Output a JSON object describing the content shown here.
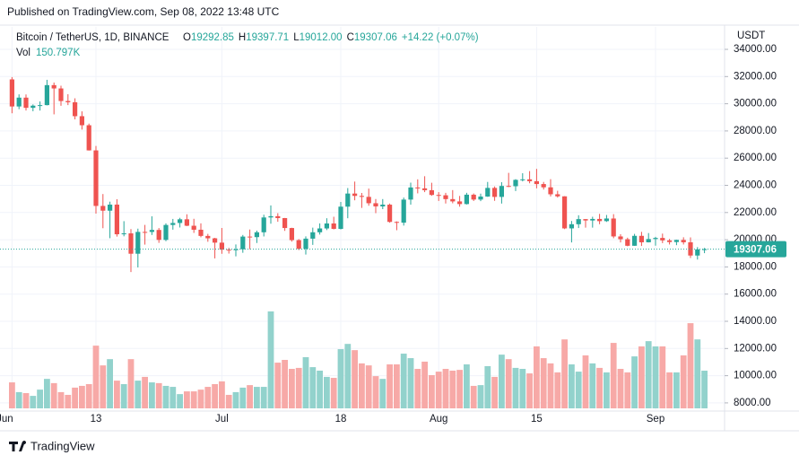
{
  "header": "Published on TradingView.com, Sep 08, 2022 13:48 UTC",
  "footer": "TradingView",
  "chart_data": {
    "type": "candlestick",
    "legend": {
      "symbol": "Bitcoin / TetherUS, 1D, BINANCE",
      "ohlc": [
        {
          "prefix": "O",
          "value": "19292.85"
        },
        {
          "prefix": "H",
          "value": "19397.71"
        },
        {
          "prefix": "L",
          "value": "19012.00"
        },
        {
          "prefix": "C",
          "value": "19307.06"
        }
      ],
      "change": "+14.22 (+0.07%)",
      "volume_name": "Vol",
      "volume_value": "150.797K"
    },
    "currency": "USDT",
    "up_color": "#26a69a",
    "down_color": "#ef5350",
    "up_volume_color": "#92d2cc",
    "down_volume_color": "#f7a9a7",
    "grid": true,
    "last_price": {
      "value": 19307.06,
      "label": "19307.06"
    },
    "ylim": [
      7400,
      35650
    ],
    "yticks": [
      {
        "value": 8000,
        "label": "8000.00"
      },
      {
        "value": 10000,
        "label": "10000.00"
      },
      {
        "value": 12000,
        "label": "12000.00"
      },
      {
        "value": 14000,
        "label": "14000.00"
      },
      {
        "value": 16000,
        "label": "16000.00"
      },
      {
        "value": 18000,
        "label": "18000.00"
      },
      {
        "value": 20000,
        "label": "20000.00"
      },
      {
        "value": 22000,
        "label": "22000.00"
      },
      {
        "value": 24000,
        "label": "24000.00"
      },
      {
        "value": 26000,
        "label": "26000.00"
      },
      {
        "value": 28000,
        "label": "28000.00"
      },
      {
        "value": 30000,
        "label": "30000.00"
      },
      {
        "value": 32000,
        "label": "32000.00"
      },
      {
        "value": 34000,
        "label": "34000.00"
      }
    ],
    "xticks": [
      {
        "value": 0,
        "label": "Jun"
      },
      {
        "value": 12,
        "label": "13"
      },
      {
        "value": 30,
        "label": "Jul"
      },
      {
        "value": 47,
        "label": "18"
      },
      {
        "value": 61,
        "label": "Aug"
      },
      {
        "value": 75,
        "label": "15"
      },
      {
        "value": 92,
        "label": "Sep"
      }
    ],
    "open": [
      31790,
      29800,
      30450,
      29700,
      29860,
      29900,
      31370,
      31125,
      30200,
      30110,
      29085,
      28420,
      26570,
      22485,
      22136,
      22583,
      20401,
      20468,
      18970,
      20574,
      20573,
      20719,
      19987,
      21085,
      21231,
      21502,
      21028,
      20735,
      20280,
      20105,
      19785,
      19269,
      19243,
      19297,
      20231,
      20191,
      20548,
      21637,
      21731,
      21592,
      20860,
      19970,
      19329,
      20080,
      20548,
      20830,
      21195,
      20798,
      22432,
      23396,
      23223,
      23152,
      22684,
      22451,
      22579,
      21310,
      21254,
      22952,
      23843,
      23777,
      23643,
      23293,
      23268,
      22987,
      22818,
      22622,
      23312,
      22954,
      23175,
      23810,
      23149,
      23954,
      23935,
      24403,
      24441,
      24305,
      24094,
      23854,
      23342,
      23191,
      20834,
      21140,
      21516,
      21416,
      21529,
      21368,
      21560,
      20241,
      20037,
      19555,
      20285,
      19811,
      20050,
      20131,
      19951,
      19831,
      19986,
      19812,
      18837,
      19292.85
    ],
    "high": [
      31960,
      30690,
      30680,
      29950,
      30170,
      31760,
      31560,
      31330,
      30700,
      30400,
      29440,
      28540,
      26900,
      23360,
      22800,
      22980,
      21365,
      20785,
      20815,
      21090,
      21720,
      20860,
      21200,
      21530,
      21610,
      21870,
      21540,
      21200,
      20430,
      20140,
      20865,
      19400,
      19650,
      20350,
      20750,
      20670,
      21840,
      22527,
      21950,
      21600,
      20880,
      20050,
      20250,
      20890,
      21200,
      21580,
      21690,
      22780,
      23800,
      24276,
      23440,
      23760,
      22990,
      22990,
      22660,
      21350,
      23100,
      24200,
      24442,
      24670,
      24190,
      23500,
      23450,
      23650,
      23220,
      23450,
      23400,
      23390,
      24250,
      23920,
      24230,
      24918,
      24450,
      24890,
      25047,
      25211,
      24250,
      24450,
      23600,
      23200,
      21380,
      21800,
      21520,
      21690,
      21900,
      21820,
      21880,
      20400,
      20150,
      20430,
      20580,
      20490,
      20210,
      20450,
      20060,
      20000,
      20180,
      20170,
      19460,
      19397.71
    ],
    "low": [
      29300,
      29600,
      29500,
      29450,
      29500,
      29880,
      29220,
      29850,
      29900,
      28850,
      28100,
      26560,
      21925,
      20846,
      20111,
      20230,
      20250,
      17622,
      17960,
      19640,
      20350,
      19770,
      19890,
      20740,
      20900,
      21000,
      20500,
      20180,
      19850,
      18626,
      18966,
      18980,
      18780,
      19040,
      19300,
      19760,
      20240,
      21180,
      21320,
      20650,
      19860,
      19240,
      18910,
      19620,
      20380,
      20710,
      20760,
      20760,
      21580,
      22900,
      22340,
      22500,
      21950,
      22250,
      21250,
      20700,
      21040,
      22580,
      23410,
      23500,
      23230,
      22850,
      22660,
      22680,
      22430,
      22590,
      22850,
      22840,
      23150,
      22860,
      22660,
      23870,
      23580,
      24290,
      24150,
      23780,
      23690,
      23180,
      23100,
      20780,
      19800,
      20860,
      20890,
      20890,
      21140,
      21310,
      20110,
      19800,
      19520,
      19550,
      19540,
      19800,
      19560,
      19750,
      19650,
      19600,
      19650,
      18650,
      18540,
      19012.0
    ],
    "close": [
      29800,
      30450,
      29700,
      29860,
      29900,
      31370,
      31125,
      30200,
      30110,
      29085,
      28420,
      26570,
      22485,
      22136,
      22583,
      20401,
      20468,
      18970,
      20574,
      20573,
      20719,
      19987,
      21085,
      21231,
      21502,
      21028,
      20735,
      20280,
      20105,
      19785,
      19269,
      19243,
      19297,
      20231,
      20191,
      20548,
      21637,
      21731,
      21592,
      20860,
      19970,
      19329,
      20080,
      20548,
      20830,
      21195,
      20798,
      22432,
      23396,
      23223,
      23152,
      22684,
      22451,
      22579,
      21310,
      21254,
      22952,
      23843,
      23777,
      23643,
      23293,
      23268,
      22987,
      22818,
      22622,
      23312,
      22954,
      23175,
      23810,
      23149,
      23954,
      23935,
      24403,
      24441,
      24305,
      24094,
      23854,
      23342,
      23191,
      20834,
      21140,
      21516,
      21416,
      21529,
      21368,
      21560,
      20241,
      20037,
      19555,
      20285,
      19811,
      20050,
      20131,
      19951,
      19831,
      19986,
      19812,
      18837,
      19290,
      19307.06
    ],
    "volume": [
      104000,
      65000,
      61000,
      50000,
      75000,
      118000,
      101000,
      65000,
      54000,
      83000,
      90000,
      97000,
      251000,
      172000,
      197000,
      111000,
      97000,
      197000,
      111000,
      126000,
      104000,
      101000,
      90000,
      86000,
      57000,
      68000,
      68000,
      75000,
      86000,
      97000,
      108000,
      54000,
      65000,
      83000,
      93000,
      86000,
      86000,
      388000,
      183000,
      194000,
      158000,
      162000,
      205000,
      165000,
      151000,
      126000,
      122000,
      237000,
      258000,
      233000,
      180000,
      172000,
      129000,
      118000,
      176000,
      176000,
      219000,
      201000,
      158000,
      187000,
      133000,
      147000,
      158000,
      151000,
      154000,
      176000,
      90000,
      93000,
      169000,
      126000,
      215000,
      197000,
      162000,
      158000,
      140000,
      248000,
      201000,
      180000,
      144000,
      276000,
      176000,
      147000,
      212000,
      180000,
      162000,
      144000,
      262000,
      158000,
      144000,
      208000,
      248000,
      269000,
      248000,
      248000,
      144000,
      144000,
      212000,
      341000,
      276000,
      150797
    ]
  }
}
